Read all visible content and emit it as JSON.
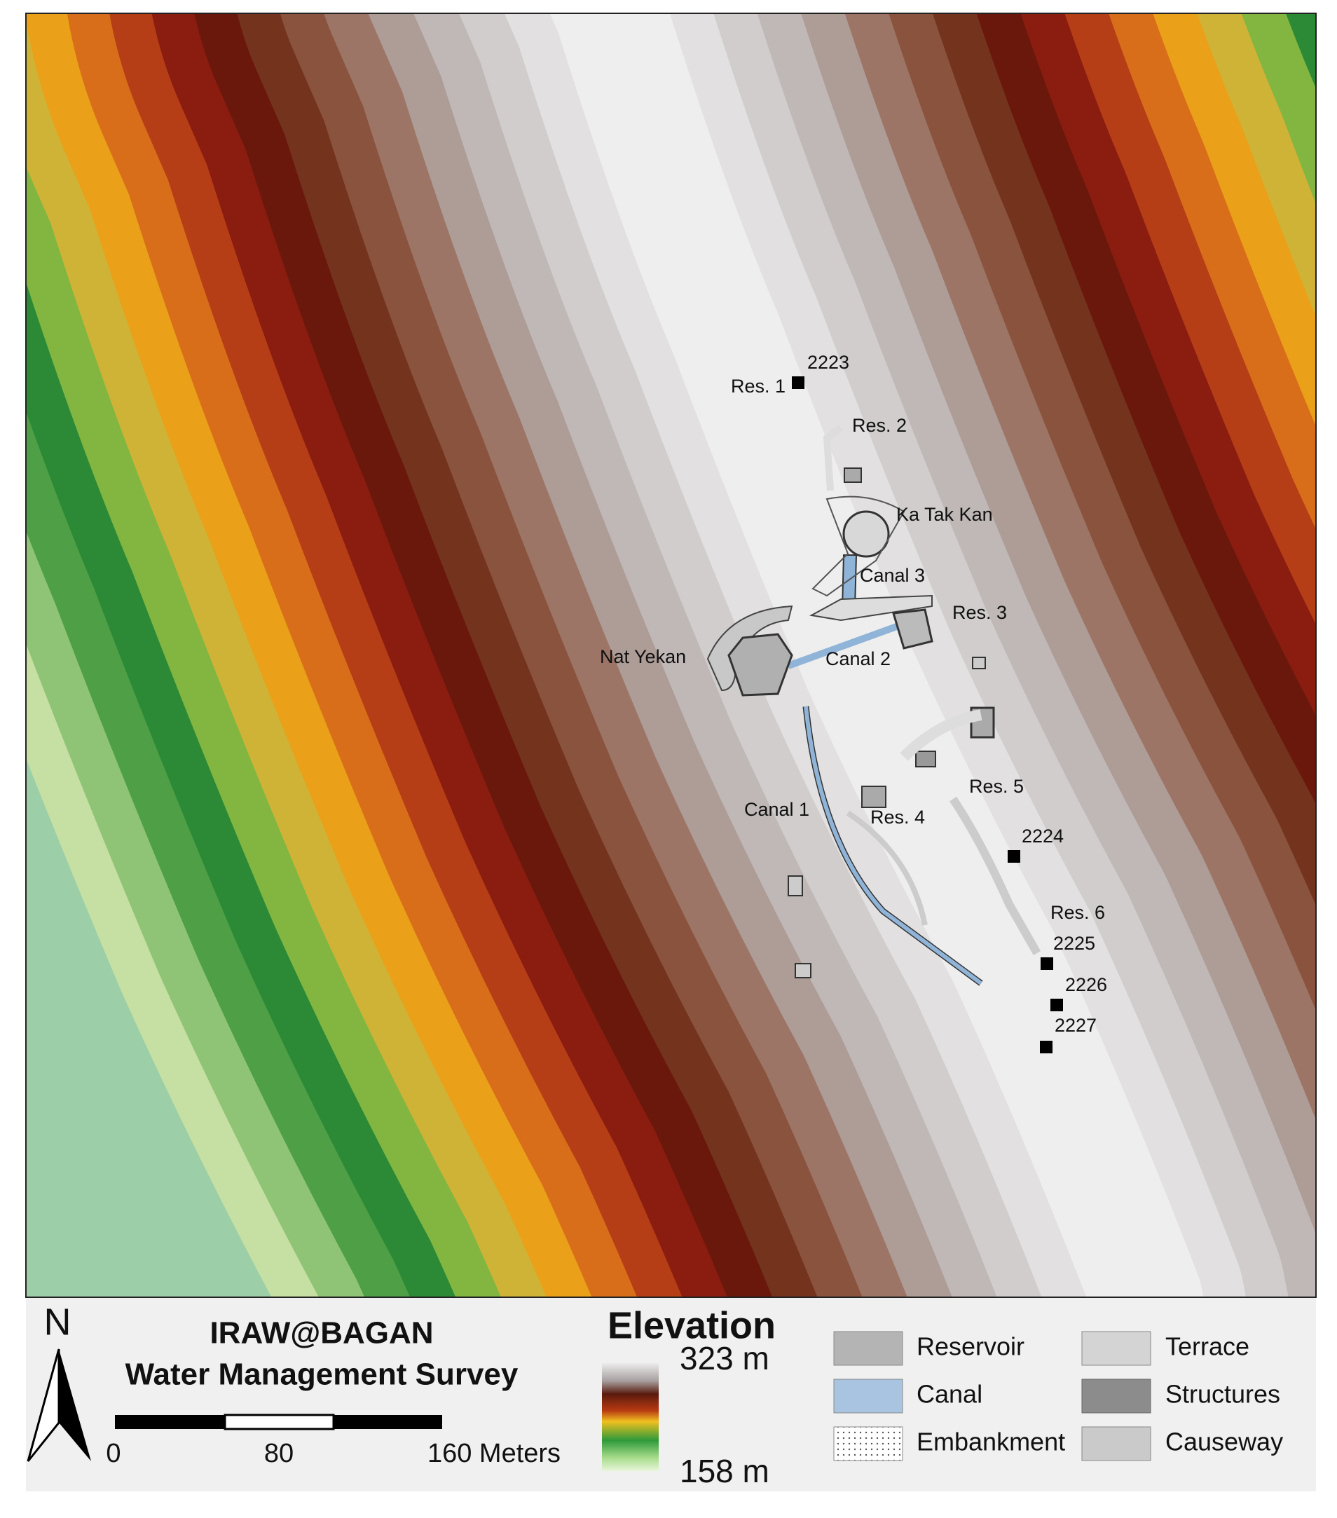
{
  "map": {
    "site_labels": [
      "2223",
      "Res. 1",
      "Res. 2",
      "Ka Tak Kan",
      "Canal 3",
      "Res. 3",
      "Nat Yekan",
      "Canal 2",
      "Res. 5",
      "Canal 1",
      "Res. 4",
      "2224",
      "Res. 6",
      "2225",
      "2226",
      "2227"
    ]
  },
  "legend": {
    "north": "N",
    "title": "IRAW@BAGAN",
    "subtitle": "Water Management Survey",
    "scale_labels": [
      "0",
      "80",
      "160 Meters"
    ],
    "elevation": {
      "title": "Elevation",
      "max": "323 m",
      "min": "158 m"
    },
    "items": [
      "Reservoir",
      "Canal",
      "Embankment",
      "Terrace",
      "Structures",
      "Causeway"
    ]
  }
}
